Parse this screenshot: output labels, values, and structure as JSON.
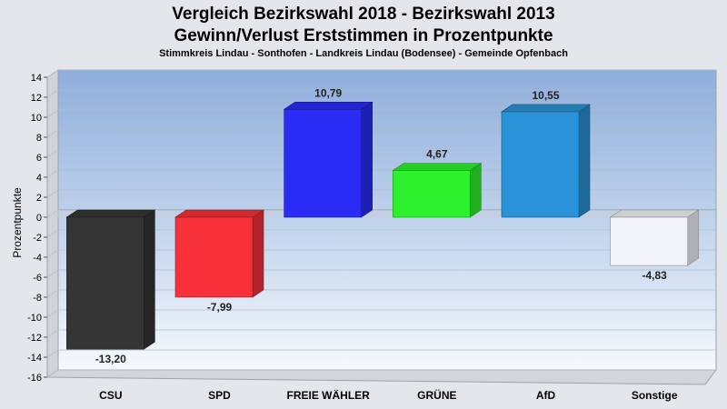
{
  "chart_data": {
    "type": "bar",
    "title": "Vergleich Bezirkswahl 2018 - Bezirkswahl 2013",
    "title_line2": "Gewinn/Verlust Erststimmen in Prozentpunkte",
    "subtitle": "Stimmkreis Lindau - Sonthofen - Landkreis Lindau (Bodensee) - Gemeinde Opfenbach",
    "ylabel": "Prozentpunkte",
    "xlabel": "",
    "ylim": [
      -16,
      14
    ],
    "yticks": [
      14,
      12,
      10,
      8,
      6,
      4,
      2,
      0,
      -2,
      -4,
      -6,
      -8,
      -10,
      -12,
      -14,
      -16
    ],
    "grid": true,
    "categories": [
      "CSU",
      "SPD",
      "FREIE WÄHLER",
      "GRÜNE",
      "AfD",
      "Sonstige"
    ],
    "values": [
      -13.2,
      -7.99,
      10.79,
      4.67,
      10.55,
      -4.83
    ],
    "value_labels": [
      "-13,20",
      "-7,99",
      "10,79",
      "4,67",
      "10,55",
      "-4,83"
    ],
    "colors": [
      "#353535",
      "#f7303a",
      "#2a2cf6",
      "#2ef12e",
      "#2a92d6",
      "#f2f4f8"
    ]
  }
}
